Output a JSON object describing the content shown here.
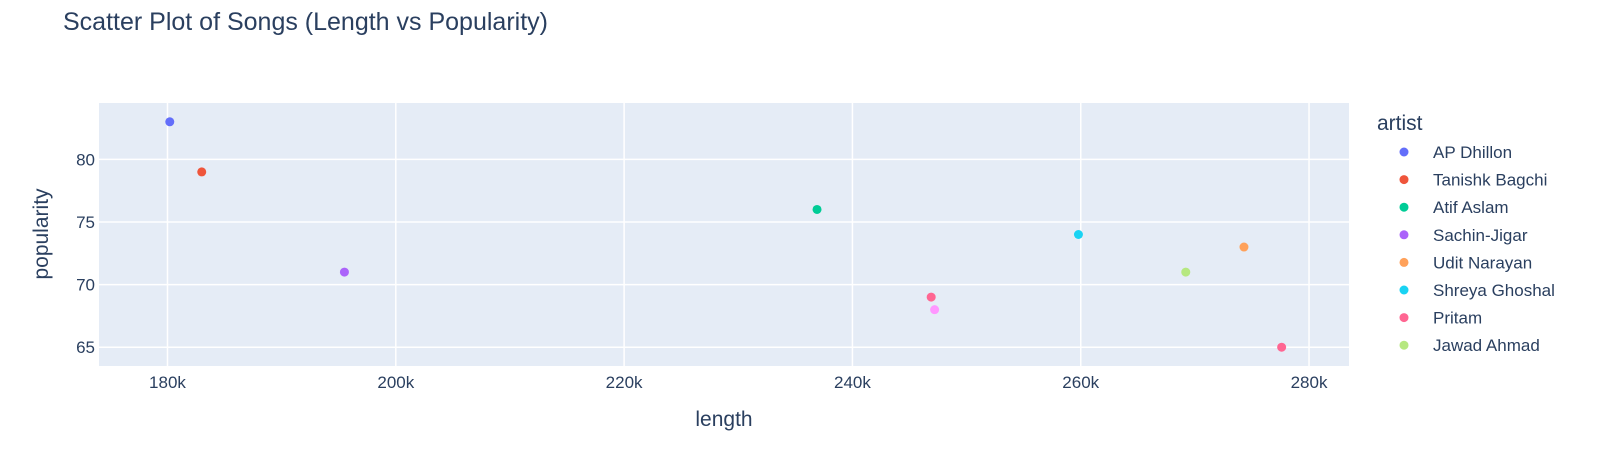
{
  "chart_data": {
    "type": "scatter",
    "title": "Scatter Plot of Songs (Length vs Popularity)",
    "xlabel": "length",
    "ylabel": "popularity",
    "xlim": [
      174000,
      283500
    ],
    "ylim": [
      63.5,
      84.5
    ],
    "x_ticks": [
      180000,
      200000,
      220000,
      240000,
      260000,
      280000
    ],
    "x_tick_labels": [
      "180k",
      "200k",
      "220k",
      "240k",
      "260k",
      "280k"
    ],
    "y_ticks": [
      65,
      70,
      75,
      80
    ],
    "y_tick_labels": [
      "65",
      "70",
      "75",
      "80"
    ],
    "grid": true,
    "legend_title": "artist",
    "legend_position": "right",
    "series": [
      {
        "name": "AP Dhillon",
        "color": "#636efa",
        "points": [
          {
            "x": 180200,
            "y": 83
          }
        ]
      },
      {
        "name": "Tanishk Bagchi",
        "color": "#EF553B",
        "points": [
          {
            "x": 183000,
            "y": 79
          }
        ]
      },
      {
        "name": "Atif Aslam",
        "color": "#00cc96",
        "points": [
          {
            "x": 236900,
            "y": 76
          }
        ]
      },
      {
        "name": "Sachin-Jigar",
        "color": "#ab63fa",
        "points": [
          {
            "x": 195500,
            "y": 71
          }
        ]
      },
      {
        "name": "Udit Narayan",
        "color": "#FFA15A",
        "points": [
          {
            "x": 274300,
            "y": 73
          }
        ]
      },
      {
        "name": "Shreya Ghoshal",
        "color": "#19d3f3",
        "points": [
          {
            "x": 259800,
            "y": 74
          }
        ]
      },
      {
        "name": "Pritam",
        "color": "#FF6692",
        "points": [
          {
            "x": 246900,
            "y": 69
          },
          {
            "x": 277600,
            "y": 65
          }
        ]
      },
      {
        "name": "Jawad Ahmad",
        "color": "#B6E880",
        "points": [
          {
            "x": 269200,
            "y": 71
          }
        ]
      },
      {
        "name": "",
        "color": "#FF97FF",
        "points": [
          {
            "x": 247200,
            "y": 68
          }
        ]
      }
    ]
  }
}
